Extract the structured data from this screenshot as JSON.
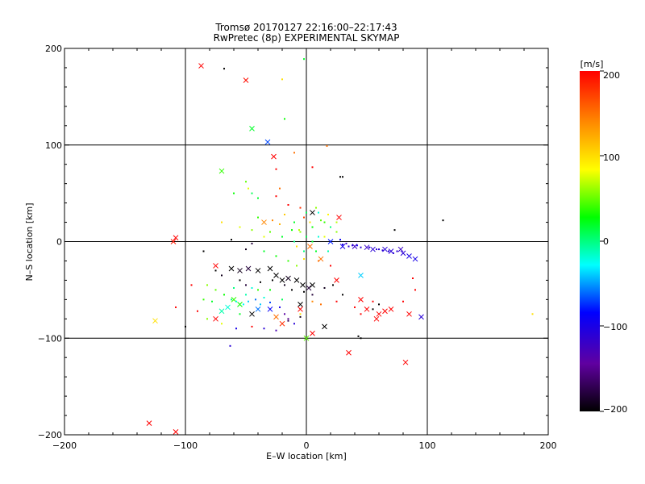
{
  "chart_data": {
    "type": "scatter",
    "title": "Tromsø 20170127 22:16:00–22:17:43",
    "subtitle": "RwPretec (8p) EXPERIMENTAL SKYMAP",
    "xlabel": "E–W location [km]",
    "ylabel": "N–S location [km]",
    "xlim": [
      -200,
      200
    ],
    "ylim": [
      -200,
      200
    ],
    "xticks": [
      "−200",
      "−100",
      "0",
      "100",
      "200"
    ],
    "yticks": [
      "−200",
      "−100",
      "0",
      "100",
      "200"
    ],
    "grid": true,
    "colorbar": {
      "label": "[m/s]",
      "range": [
        -200,
        200
      ],
      "ticks": [
        "200",
        "100",
        "0",
        "−100",
        "−200"
      ],
      "colors": [
        "#000000",
        "#6000a0",
        "#0000ff",
        "#00ffff",
        "#00ff00",
        "#ffff00",
        "#ff8000",
        "#ff0000"
      ]
    },
    "series": [
      {
        "name": "crosses",
        "marker": "x",
        "points": [
          [
            -87,
            182,
            200
          ],
          [
            -50,
            167,
            195
          ],
          [
            -45,
            117,
            20
          ],
          [
            -32,
            103,
            -70
          ],
          [
            -70,
            73,
            40
          ],
          [
            -27,
            88,
            200
          ],
          [
            -108,
            4,
            200
          ],
          [
            -110,
            0,
            190
          ],
          [
            27,
            25,
            200
          ],
          [
            5,
            30,
            -200
          ],
          [
            3,
            -5,
            150
          ],
          [
            12,
            -18,
            150
          ],
          [
            -75,
            -25,
            200
          ],
          [
            -62,
            -28,
            -200
          ],
          [
            -55,
            -30,
            -190
          ],
          [
            -48,
            -28,
            -180
          ],
          [
            -40,
            -30,
            -200
          ],
          [
            -30,
            -28,
            -200
          ],
          [
            -25,
            -35,
            -200
          ],
          [
            -20,
            -40,
            -200
          ],
          [
            -15,
            -38,
            -190
          ],
          [
            -8,
            -40,
            -200
          ],
          [
            -3,
            -45,
            -200
          ],
          [
            2,
            -48,
            -180
          ],
          [
            5,
            -45,
            -200
          ],
          [
            -60,
            -60,
            40
          ],
          [
            -55,
            -65,
            30
          ],
          [
            -65,
            -68,
            -20
          ],
          [
            -70,
            -72,
            -10
          ],
          [
            -75,
            -80,
            200
          ],
          [
            -40,
            -70,
            -60
          ],
          [
            -45,
            -75,
            -200
          ],
          [
            -30,
            -70,
            -90
          ],
          [
            -25,
            -78,
            150
          ],
          [
            -20,
            -85,
            180
          ],
          [
            -5,
            -65,
            -200
          ],
          [
            -5,
            -70,
            200
          ],
          [
            45,
            -60,
            200
          ],
          [
            50,
            -70,
            200
          ],
          [
            60,
            -75,
            200
          ],
          [
            65,
            -72,
            200
          ],
          [
            70,
            -70,
            200
          ],
          [
            58,
            -80,
            200
          ],
          [
            85,
            -75,
            200
          ],
          [
            95,
            -78,
            -110
          ],
          [
            15,
            -88,
            -200
          ],
          [
            5,
            -95,
            200
          ],
          [
            0,
            -100,
            50
          ],
          [
            35,
            -115,
            200
          ],
          [
            82,
            -125,
            200
          ],
          [
            -130,
            -188,
            200
          ],
          [
            -108,
            -197,
            200
          ],
          [
            -125,
            -82,
            100
          ],
          [
            45,
            -35,
            -40
          ],
          [
            25,
            -40,
            200
          ],
          [
            20,
            0,
            -80
          ],
          [
            30,
            -5,
            -100
          ],
          [
            40,
            -5,
            -120
          ],
          [
            50,
            -6,
            -120
          ],
          [
            55,
            -8,
            -110
          ],
          [
            65,
            -8,
            -110
          ],
          [
            70,
            -10,
            -110
          ],
          [
            78,
            -8,
            -120
          ],
          [
            80,
            -12,
            -110
          ],
          [
            85,
            -15,
            -100
          ],
          [
            90,
            -18,
            -100
          ],
          [
            -35,
            20,
            140
          ]
        ]
      },
      {
        "name": "dots",
        "marker": "dot",
        "points": [
          [
            -68,
            179,
            -200
          ],
          [
            -20,
            168,
            100
          ],
          [
            -18,
            127,
            30
          ],
          [
            -2,
            189,
            20
          ],
          [
            17,
            99,
            150
          ],
          [
            -10,
            92,
            150
          ],
          [
            -25,
            75,
            200
          ],
          [
            5,
            77,
            200
          ],
          [
            -50,
            62,
            50
          ],
          [
            -48,
            55,
            80
          ],
          [
            -60,
            50,
            30
          ],
          [
            -45,
            50,
            10
          ],
          [
            -40,
            45,
            20
          ],
          [
            -22,
            55,
            150
          ],
          [
            -25,
            47,
            200
          ],
          [
            30,
            67,
            -200
          ],
          [
            -15,
            38,
            200
          ],
          [
            -5,
            35,
            180
          ],
          [
            0,
            30,
            10
          ],
          [
            10,
            30,
            -20
          ],
          [
            -10,
            20,
            20
          ],
          [
            5,
            15,
            30
          ],
          [
            15,
            20,
            40
          ],
          [
            20,
            15,
            0
          ],
          [
            -30,
            10,
            50
          ],
          [
            -35,
            5,
            80
          ],
          [
            -20,
            5,
            20
          ],
          [
            -10,
            0,
            0
          ],
          [
            5,
            0,
            20
          ],
          [
            10,
            5,
            -20
          ],
          [
            -5,
            10,
            60
          ],
          [
            0,
            5,
            10
          ],
          [
            15,
            5,
            80
          ],
          [
            25,
            10,
            60
          ],
          [
            30,
            -3,
            -100
          ],
          [
            35,
            -5,
            -110
          ],
          [
            45,
            -6,
            -110
          ],
          [
            60,
            -8,
            -110
          ],
          [
            75,
            -10,
            -110
          ],
          [
            -70,
            20,
            100
          ],
          [
            -55,
            15,
            80
          ],
          [
            -45,
            12,
            60
          ],
          [
            -40,
            25,
            40
          ],
          [
            -12,
            12,
            30
          ],
          [
            -8,
            -5,
            100
          ],
          [
            -2,
            -10,
            0
          ],
          [
            8,
            -10,
            20
          ],
          [
            18,
            -10,
            -10
          ],
          [
            -75,
            -30,
            -200
          ],
          [
            -70,
            -35,
            -190
          ],
          [
            -55,
            -40,
            -200
          ],
          [
            -50,
            -45,
            -180
          ],
          [
            -38,
            -42,
            -200
          ],
          [
            -28,
            -40,
            -200
          ],
          [
            -18,
            -45,
            -190
          ],
          [
            -12,
            -50,
            -200
          ],
          [
            -2,
            -52,
            -200
          ],
          [
            5,
            -55,
            -180
          ],
          [
            15,
            -48,
            -190
          ],
          [
            22,
            -45,
            -200
          ],
          [
            30,
            -55,
            -200
          ],
          [
            -82,
            -45,
            60
          ],
          [
            -75,
            -50,
            50
          ],
          [
            -68,
            -55,
            30
          ],
          [
            -62,
            -60,
            0
          ],
          [
            -58,
            -62,
            -20
          ],
          [
            -52,
            -65,
            -30
          ],
          [
            -48,
            -62,
            -40
          ],
          [
            -42,
            -60,
            -60
          ],
          [
            -35,
            -58,
            -20
          ],
          [
            -30,
            -63,
            -70
          ],
          [
            -22,
            -68,
            -100
          ],
          [
            -18,
            -75,
            -140
          ],
          [
            -15,
            -80,
            -150
          ],
          [
            -10,
            -85,
            -110
          ],
          [
            -5,
            -75,
            100
          ],
          [
            -90,
            -72,
            200
          ],
          [
            -82,
            -80,
            60
          ],
          [
            -70,
            -85,
            80
          ],
          [
            -63,
            -108,
            -110
          ],
          [
            -58,
            -90,
            -100
          ],
          [
            -45,
            -88,
            200
          ],
          [
            -35,
            -90,
            -110
          ],
          [
            -25,
            -92,
            -130
          ],
          [
            -15,
            -82,
            -170
          ],
          [
            -5,
            -78,
            -190
          ],
          [
            5,
            -62,
            140
          ],
          [
            12,
            -65,
            150
          ],
          [
            25,
            -62,
            200
          ],
          [
            40,
            -68,
            200
          ],
          [
            45,
            -75,
            200
          ],
          [
            55,
            -70,
            -200
          ],
          [
            60,
            -65,
            -200
          ],
          [
            -95,
            -45,
            200
          ],
          [
            -108,
            -68,
            200
          ],
          [
            -100,
            -88,
            -200
          ],
          [
            43,
            -98,
            -200
          ],
          [
            45,
            -100,
            -200
          ],
          [
            55,
            -62,
            200
          ],
          [
            88,
            -38,
            200
          ],
          [
            90,
            -50,
            200
          ],
          [
            80,
            -62,
            200
          ],
          [
            73,
            12,
            -200
          ],
          [
            113,
            22,
            -200
          ],
          [
            28,
            67,
            -200
          ],
          [
            187,
            -75,
            100
          ],
          [
            -55,
            -75,
            20
          ],
          [
            -20,
            -60,
            10
          ],
          [
            -30,
            -50,
            30
          ],
          [
            -40,
            -50,
            40
          ],
          [
            -8,
            -25,
            60
          ],
          [
            -15,
            -20,
            40
          ],
          [
            -25,
            -15,
            30
          ],
          [
            -35,
            -10,
            20
          ],
          [
            -2,
            -18,
            100
          ],
          [
            10,
            -20,
            150
          ],
          [
            20,
            -25,
            200
          ],
          [
            -85,
            -60,
            40
          ],
          [
            -78,
            -62,
            20
          ],
          [
            -60,
            -48,
            0
          ],
          [
            -50,
            -55,
            -10
          ],
          [
            -45,
            -48,
            -20
          ],
          [
            -38,
            -65,
            -40
          ],
          [
            8,
            35,
            60
          ],
          [
            12,
            22,
            50
          ],
          [
            18,
            28,
            90
          ],
          [
            25,
            20,
            70
          ],
          [
            -18,
            28,
            110
          ],
          [
            -22,
            18,
            120
          ],
          [
            -28,
            22,
            140
          ],
          [
            -2,
            25,
            170
          ],
          [
            3,
            20,
            100
          ],
          [
            -6,
            12,
            70
          ],
          [
            28,
            2,
            -90
          ],
          [
            33,
            -2,
            -120
          ],
          [
            38,
            -4,
            -110
          ],
          [
            42,
            -4,
            -100
          ],
          [
            52,
            -6,
            -110
          ],
          [
            58,
            -8,
            -110
          ],
          [
            63,
            -9,
            -110
          ],
          [
            68,
            -10,
            -110
          ],
          [
            72,
            -12,
            -110
          ],
          [
            -62,
            2,
            -200
          ],
          [
            -85,
            -10,
            -200
          ],
          [
            -50,
            -8,
            -190
          ],
          [
            -45,
            -2,
            -180
          ]
        ]
      }
    ]
  }
}
